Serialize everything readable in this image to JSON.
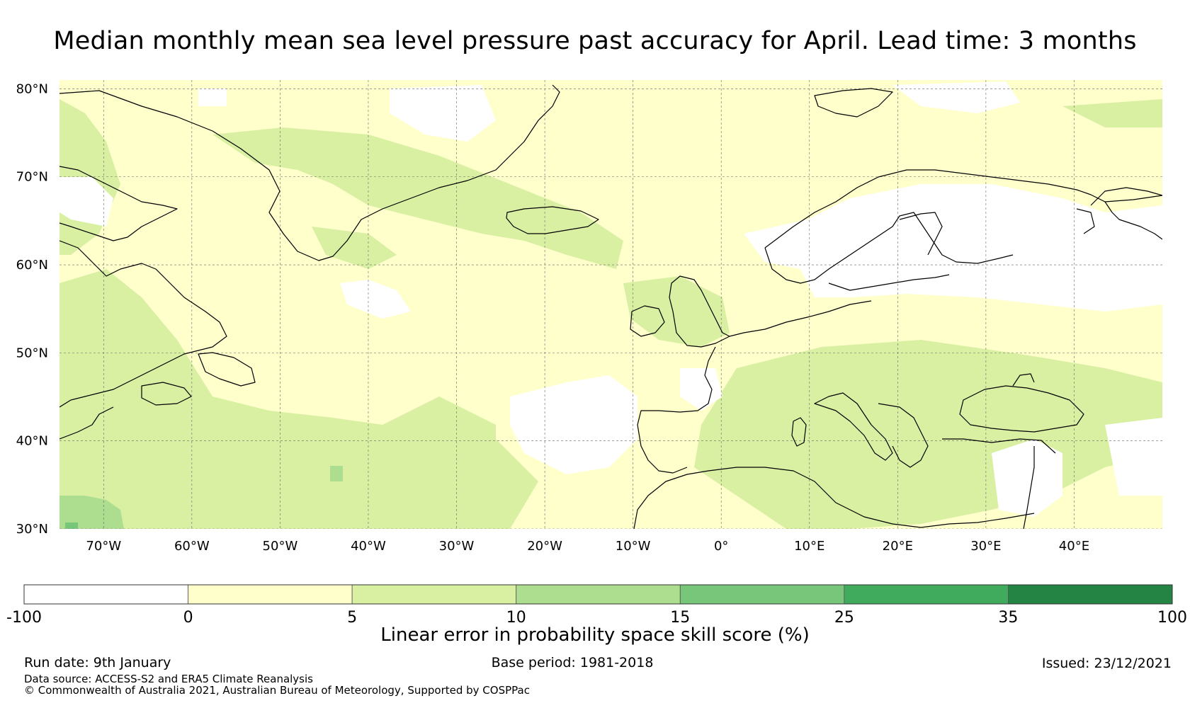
{
  "title": "Median monthly mean sea level pressure past accuracy for April. Lead time: 3 months",
  "map": {
    "lon_range": [
      -75,
      50
    ],
    "lat_range": [
      30,
      81
    ],
    "lat_ticks": [
      {
        "value": 80,
        "label": "80°N"
      },
      {
        "value": 70,
        "label": "70°N"
      },
      {
        "value": 60,
        "label": "60°N"
      },
      {
        "value": 50,
        "label": "50°N"
      },
      {
        "value": 40,
        "label": "40°N"
      },
      {
        "value": 30,
        "label": "30°N"
      }
    ],
    "lon_ticks": [
      {
        "value": -70,
        "label": "70°W"
      },
      {
        "value": -60,
        "label": "60°W"
      },
      {
        "value": -50,
        "label": "50°W"
      },
      {
        "value": -40,
        "label": "40°W"
      },
      {
        "value": -30,
        "label": "30°W"
      },
      {
        "value": -20,
        "label": "20°W"
      },
      {
        "value": -10,
        "label": "10°W"
      },
      {
        "value": 0,
        "label": "0°"
      },
      {
        "value": 10,
        "label": "10°E"
      },
      {
        "value": 20,
        "label": "20°E"
      },
      {
        "value": 30,
        "label": "30°E"
      },
      {
        "value": 40,
        "label": "40°E"
      }
    ]
  },
  "colorbar": {
    "title": "Linear error in probability space skill score (%)",
    "bins": [
      {
        "from": -100,
        "to": 0,
        "color": "#ffffff"
      },
      {
        "from": 0,
        "to": 5,
        "color": "#ffffcc"
      },
      {
        "from": 5,
        "to": 10,
        "color": "#d9f0a3"
      },
      {
        "from": 10,
        "to": 15,
        "color": "#addd8e"
      },
      {
        "from": 15,
        "to": 25,
        "color": "#78c679"
      },
      {
        "from": 25,
        "to": 35,
        "color": "#41ab5d"
      },
      {
        "from": 35,
        "to": 100,
        "color": "#238443"
      }
    ],
    "tick_labels": [
      "-100",
      "0",
      "5",
      "10",
      "15",
      "25",
      "35",
      "100"
    ]
  },
  "footer": {
    "run_date": "Run date: 9th January",
    "base_period": "Base period: 1981-2018",
    "issued": "Issued: 23/12/2021",
    "data_source": "Data source: ACCESS-S2 and ERA5 Climate Reanalysis",
    "copyright": "© Commonwealth of Australia 2021, Australian Bureau of Meteorology, Supported by COSPPac"
  }
}
